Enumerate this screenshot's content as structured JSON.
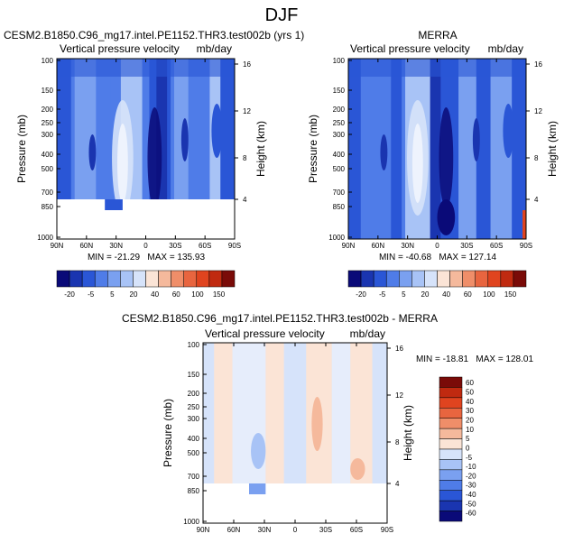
{
  "suptitle": "DJF",
  "colors": {
    "full": [
      "#0a0a78",
      "#1a35b0",
      "#2a56d6",
      "#4f7ce8",
      "#7aa0f0",
      "#a8c3f6",
      "#d6e3fa",
      "#fbe4d6",
      "#f5b99c",
      "#ef8e69",
      "#e8653f",
      "#e0441f",
      "#c02a10",
      "#7a0b08"
    ],
    "diff": [
      "#0a0a78",
      "#1a35b0",
      "#2a56d6",
      "#4f7ce8",
      "#7aa0f0",
      "#a8c3f6",
      "#d6e3fa",
      "#fbe4d6",
      "#f5b99c",
      "#ef8e69",
      "#e8653f",
      "#e0441f",
      "#c02a10",
      "#7a0b08"
    ]
  },
  "panels": [
    {
      "title": "CESM2.B1850.C96_mg17.intel.PE1152.THR3.test002b (yrs 1)",
      "left_label": "Vertical pressure velocity",
      "right_label": "mb/day",
      "ylabel": "Pressure (mb)",
      "ylabel2": "Height (km)",
      "stats": "MIN = -21.29   MAX = 135.93"
    },
    {
      "title": "MERRA",
      "left_label": "Vertical pressure velocity",
      "right_label": "mb/day",
      "ylabel": "Pressure (mb)",
      "ylabel2": "Height (km)",
      "stats": "MIN = -40.68   MAX = 127.14"
    },
    {
      "title": "CESM2.B1850.C96_mg17.intel.PE1152.THR3.test002b - MERRA",
      "left_label": "Vertical pressure velocity",
      "right_label": "mb/day",
      "ylabel": "Pressure (mb)",
      "ylabel2": "Height (km)",
      "stats": "MIN = -18.81   MAX = 128.01"
    }
  ],
  "chart_data": [
    {
      "type": "heatmap",
      "title": "CESM2.B1850.C96_mg17.intel.PE1152.THR3.test002b (yrs 1)",
      "ylabel": "Pressure (mb)",
      "x_ticks": [
        "90N",
        "60N",
        "30N",
        "0",
        "30S",
        "60S",
        "90S"
      ],
      "y_ticks": [
        "100",
        "150",
        "200",
        "250",
        "300",
        "400",
        "500",
        "700",
        "850",
        "1000"
      ],
      "y2_ticks": [
        "16",
        "12",
        "8",
        "4"
      ],
      "min": -21.29,
      "max": 135.93,
      "colorbar_levels": [
        "-20",
        "-5",
        "5",
        "20",
        "40",
        "60",
        "100",
        "150"
      ]
    },
    {
      "type": "heatmap",
      "title": "MERRA",
      "ylabel": "Pressure (mb)",
      "x_ticks": [
        "90N",
        "60N",
        "30N",
        "0",
        "30S",
        "60S",
        "90S"
      ],
      "y_ticks": [
        "100",
        "150",
        "200",
        "250",
        "300",
        "400",
        "500",
        "700",
        "850",
        "1000"
      ],
      "y2_ticks": [
        "16",
        "12",
        "8",
        "4"
      ],
      "min": -40.68,
      "max": 127.14,
      "colorbar_levels": [
        "-20",
        "-5",
        "5",
        "20",
        "40",
        "60",
        "100",
        "150"
      ]
    },
    {
      "type": "heatmap",
      "title": "CESM2.B1850.C96_mg17.intel.PE1152.THR3.test002b - MERRA",
      "ylabel": "Pressure (mb)",
      "x_ticks": [
        "90N",
        "60N",
        "30N",
        "0",
        "30S",
        "60S",
        "90S"
      ],
      "y_ticks": [
        "100",
        "150",
        "200",
        "250",
        "300",
        "400",
        "500",
        "700",
        "850",
        "1000"
      ],
      "y2_ticks": [
        "16",
        "12",
        "8",
        "4"
      ],
      "min": -18.81,
      "max": 128.01,
      "colorbar_levels": [
        "60",
        "50",
        "40",
        "30",
        "20",
        "10",
        "5",
        "0",
        "-5",
        "-10",
        "-20",
        "-30",
        "-40",
        "-50",
        "-60"
      ]
    }
  ]
}
